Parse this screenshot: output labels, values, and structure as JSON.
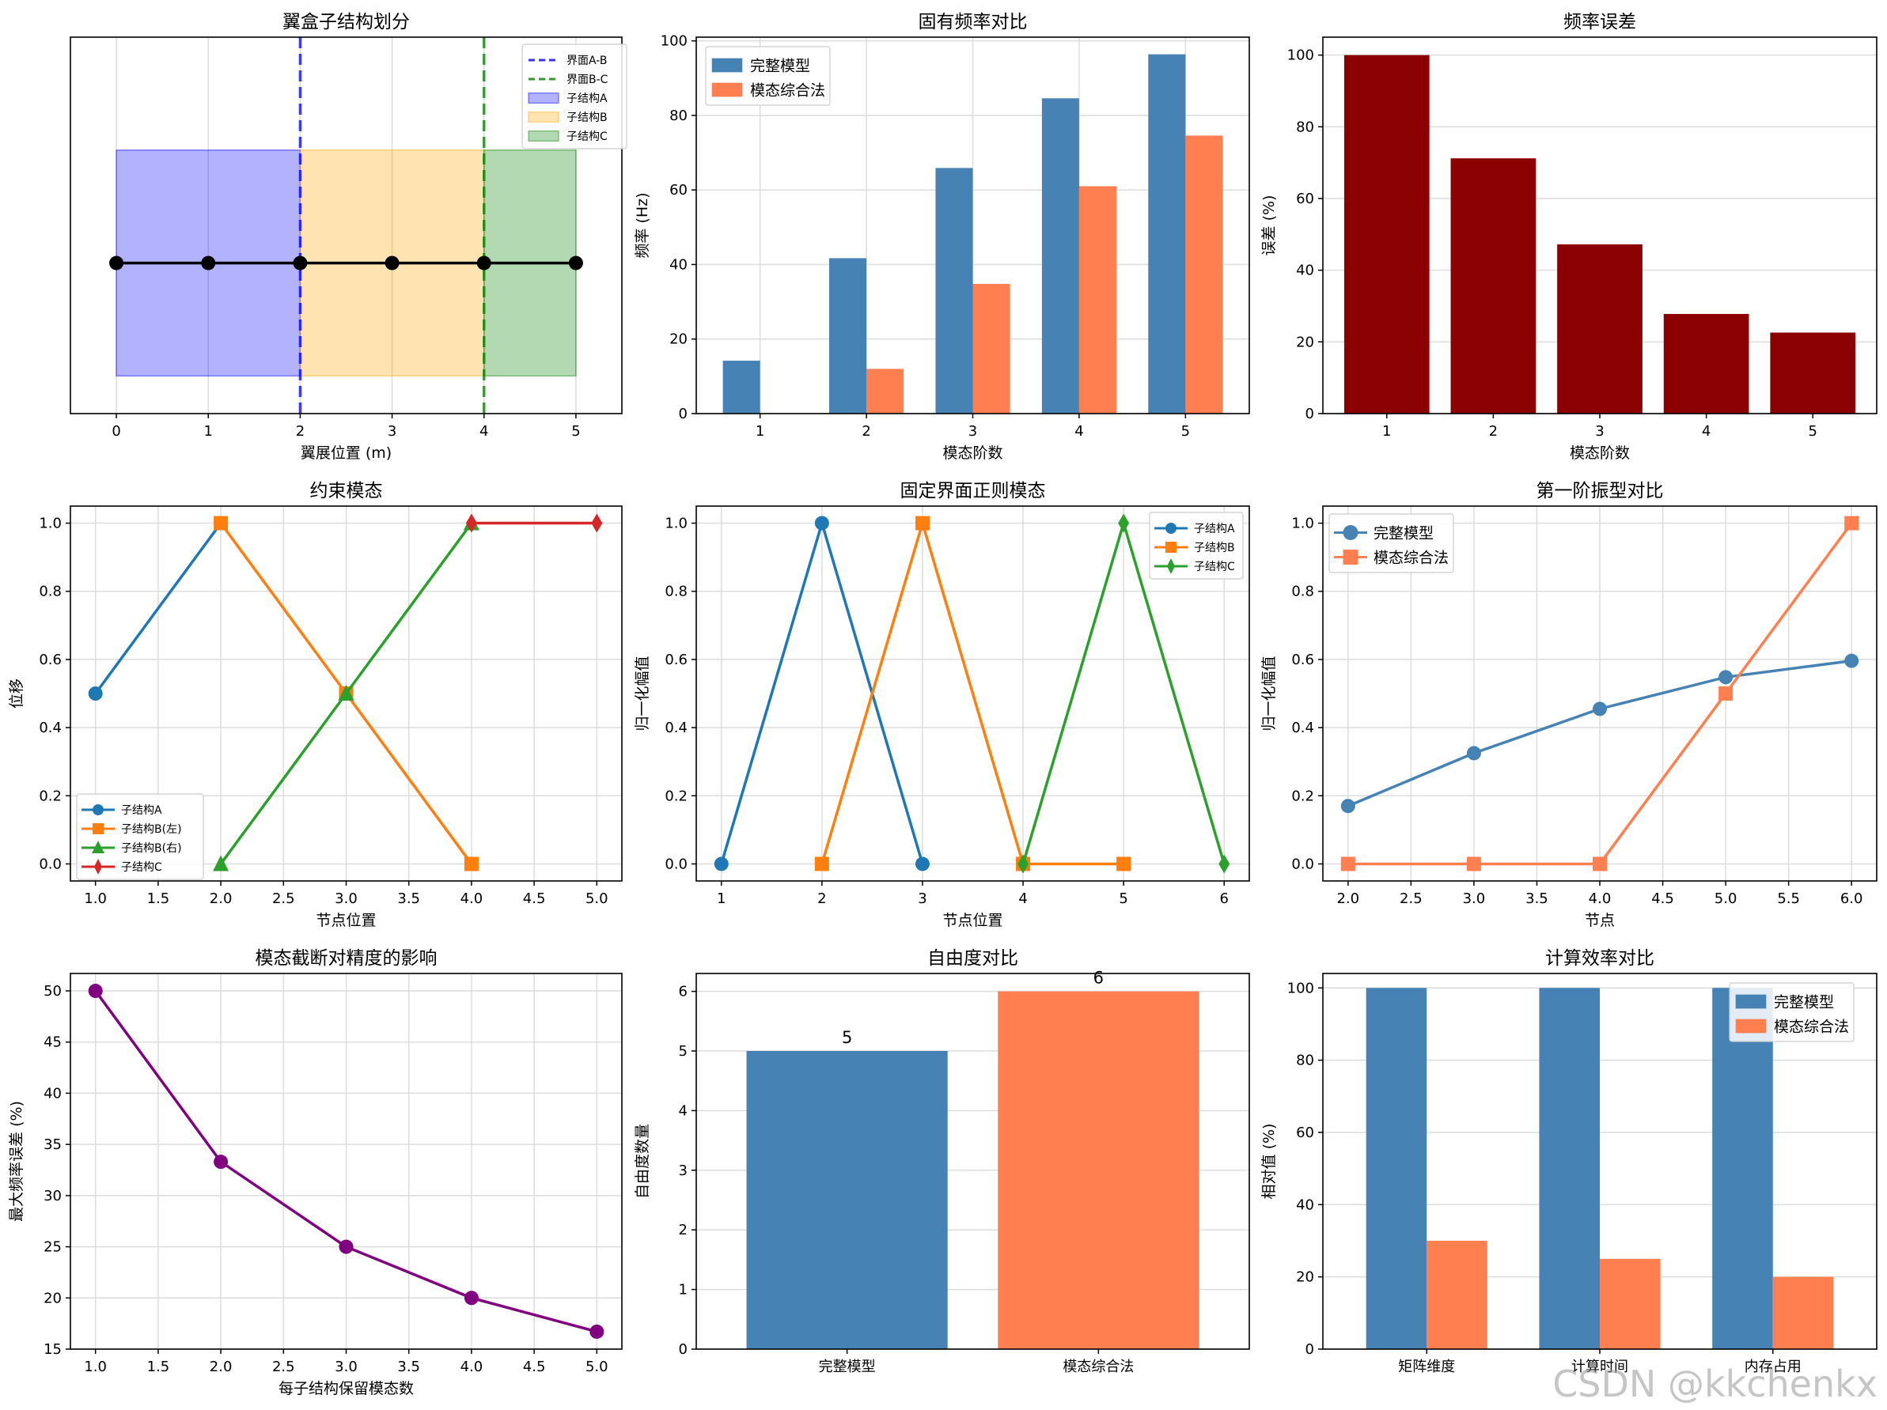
{
  "watermark": "CSDN @kkchenkx",
  "chart_data": [
    {
      "type": "diagram",
      "title": "翼盒子结构划分",
      "xlabel": "翼展位置 (m)",
      "xlim": [
        -0.5,
        5.5
      ],
      "ylim": [
        -0.5,
        1.5
      ],
      "xticks": [
        0,
        1,
        2,
        3,
        4,
        5
      ],
      "regions": [
        {
          "name": "子结构A",
          "x0": 0,
          "x1": 2,
          "color": "#0000ff",
          "alpha": 0.3
        },
        {
          "name": "子结构B",
          "x0": 2,
          "x1": 4,
          "color": "#ffa500",
          "alpha": 0.3
        },
        {
          "name": "子结构C",
          "x0": 4,
          "x1": 5,
          "color": "#008000",
          "alpha": 0.3
        }
      ],
      "region_y": [
        -0.3,
        0.9
      ],
      "interfaces": [
        {
          "name": "界面A-B",
          "x": 2,
          "color": "#0000ff"
        },
        {
          "name": "界面B-C",
          "x": 4,
          "color": "#008000"
        }
      ],
      "nodes_x": [
        0,
        1,
        2,
        3,
        4,
        5
      ],
      "nodes_y": 0.3,
      "legend": [
        "界面A-B",
        "界面B-C",
        "子结构A",
        "子结构B",
        "子结构C"
      ]
    },
    {
      "type": "bar",
      "title": "固有频率对比",
      "xlabel": "模态阶数",
      "ylabel": "频率 (Hz)",
      "categories": [
        "1",
        "2",
        "3",
        "4",
        "5"
      ],
      "ylim": [
        0,
        101
      ],
      "yticks": [
        0,
        20,
        40,
        60,
        80,
        100
      ],
      "series": [
        {
          "name": "完整模型",
          "color": "#4682b4",
          "values": [
            14.2,
            41.7,
            65.9,
            84.6,
            96.4
          ]
        },
        {
          "name": "模态综合法",
          "color": "#ff7f50",
          "values": [
            0,
            12.0,
            34.8,
            61.0,
            74.6
          ]
        }
      ]
    },
    {
      "type": "bar",
      "title": "频率误差",
      "xlabel": "模态阶数",
      "ylabel": "误差 (%)",
      "categories": [
        "1",
        "2",
        "3",
        "4",
        "5"
      ],
      "ylim": [
        0,
        105
      ],
      "yticks": [
        0,
        20,
        40,
        60,
        80,
        100
      ],
      "series": [
        {
          "name": "误差",
          "color": "#8b0000",
          "values": [
            100,
            71.2,
            47.2,
            27.8,
            22.6
          ]
        }
      ]
    },
    {
      "type": "line",
      "title": "约束模态",
      "xlabel": "节点位置",
      "ylabel": "位移",
      "xlim": [
        0.8,
        5.2
      ],
      "ylim": [
        -0.05,
        1.05
      ],
      "xticks": [
        1.0,
        1.5,
        2.0,
        2.5,
        3.0,
        3.5,
        4.0,
        4.5,
        5.0
      ],
      "yticks": [
        0.0,
        0.2,
        0.4,
        0.6,
        0.8,
        1.0
      ],
      "series": [
        {
          "name": "子结构A",
          "color": "#1f77b4",
          "marker": "circle",
          "x": [
            1,
            2
          ],
          "y": [
            0.5,
            1.0
          ]
        },
        {
          "name": "子结构B(左)",
          "color": "#ff7f0e",
          "marker": "square",
          "x": [
            2,
            3,
            4
          ],
          "y": [
            1.0,
            0.5,
            0.0
          ]
        },
        {
          "name": "子结构B(右)",
          "color": "#2ca02c",
          "marker": "triangle",
          "x": [
            2,
            3,
            4
          ],
          "y": [
            0.0,
            0.5,
            1.0
          ]
        },
        {
          "name": "子结构C",
          "color": "#d62728",
          "marker": "diamond",
          "x": [
            4,
            5
          ],
          "y": [
            1.0,
            1.0
          ]
        }
      ],
      "legend_loc": "lower-left"
    },
    {
      "type": "line",
      "title": "固定界面正则模态",
      "xlabel": "节点位置",
      "ylabel": "归一化幅值",
      "xlim": [
        0.75,
        6.25
      ],
      "ylim": [
        -0.05,
        1.05
      ],
      "xticks": [
        1,
        2,
        3,
        4,
        5,
        6
      ],
      "yticks": [
        0.0,
        0.2,
        0.4,
        0.6,
        0.8,
        1.0
      ],
      "series": [
        {
          "name": "子结构A",
          "color": "#1f77b4",
          "marker": "circle",
          "x": [
            1,
            2,
            3
          ],
          "y": [
            0,
            1,
            0
          ]
        },
        {
          "name": "子结构B",
          "color": "#ff7f0e",
          "marker": "square",
          "x": [
            2,
            3,
            4,
            5
          ],
          "y": [
            0,
            1,
            0,
            0
          ]
        },
        {
          "name": "子结构C",
          "color": "#2ca02c",
          "marker": "diamond",
          "x": [
            4,
            5,
            6
          ],
          "y": [
            0,
            1,
            0
          ]
        }
      ],
      "legend_loc": "top-right"
    },
    {
      "type": "line",
      "title": "第一阶振型对比",
      "xlabel": "节点",
      "ylabel": "归一化幅值",
      "xlim": [
        1.8,
        6.2
      ],
      "ylim": [
        -0.05,
        1.05
      ],
      "xticks": [
        2.0,
        2.5,
        3.0,
        3.5,
        4.0,
        4.5,
        5.0,
        5.5,
        6.0
      ],
      "yticks": [
        0.0,
        0.2,
        0.4,
        0.6,
        0.8,
        1.0
      ],
      "series": [
        {
          "name": "完整模型",
          "color": "#4682b4",
          "marker": "circle",
          "x": [
            2,
            3,
            4,
            5,
            6
          ],
          "y": [
            0.17,
            0.325,
            0.455,
            0.548,
            0.596
          ]
        },
        {
          "name": "模态综合法",
          "color": "#ff7f50",
          "marker": "square",
          "x": [
            2,
            3,
            4,
            5,
            6
          ],
          "y": [
            0,
            0,
            0,
            0.5,
            1.0
          ]
        }
      ],
      "legend_loc": "top-left"
    },
    {
      "type": "line",
      "title": "模态截断对精度的影响",
      "xlabel": "每子结构保留模态数",
      "ylabel": "最大频率误差 (%)",
      "xlim": [
        0.8,
        5.2
      ],
      "ylim": [
        15,
        51.7
      ],
      "xticks": [
        1.0,
        1.5,
        2.0,
        2.5,
        3.0,
        3.5,
        4.0,
        4.5,
        5.0
      ],
      "yticks": [
        15,
        20,
        25,
        30,
        35,
        40,
        45,
        50
      ],
      "series": [
        {
          "name": "误差",
          "color": "#800080",
          "marker": "circle",
          "x": [
            1,
            2,
            3,
            4,
            5
          ],
          "y": [
            50,
            33.3,
            25,
            20,
            16.7
          ]
        }
      ]
    },
    {
      "type": "bar",
      "title": "自由度对比",
      "ylabel": "自由度数量",
      "categories": [
        "完整模型",
        "模态综合法"
      ],
      "ylim": [
        0,
        6.3
      ],
      "yticks": [
        0,
        1,
        2,
        3,
        4,
        5,
        6
      ],
      "series": [
        {
          "name": "自由度",
          "colors": [
            "#4682b4",
            "#ff7f50"
          ],
          "values": [
            5,
            6
          ]
        }
      ],
      "data_labels": [
        "5",
        "6"
      ]
    },
    {
      "type": "bar",
      "title": "计算效率对比",
      "ylabel": "相对值 (%)",
      "categories": [
        "矩阵维度",
        "计算时间",
        "内存占用"
      ],
      "ylim": [
        0,
        104
      ],
      "yticks": [
        0,
        20,
        40,
        60,
        80,
        100
      ],
      "series": [
        {
          "name": "完整模型",
          "color": "#4682b4",
          "values": [
            100,
            100,
            100
          ]
        },
        {
          "name": "模态综合法",
          "color": "#ff7f50",
          "values": [
            30,
            25,
            20
          ]
        }
      ],
      "legend_loc": "top-right"
    }
  ]
}
